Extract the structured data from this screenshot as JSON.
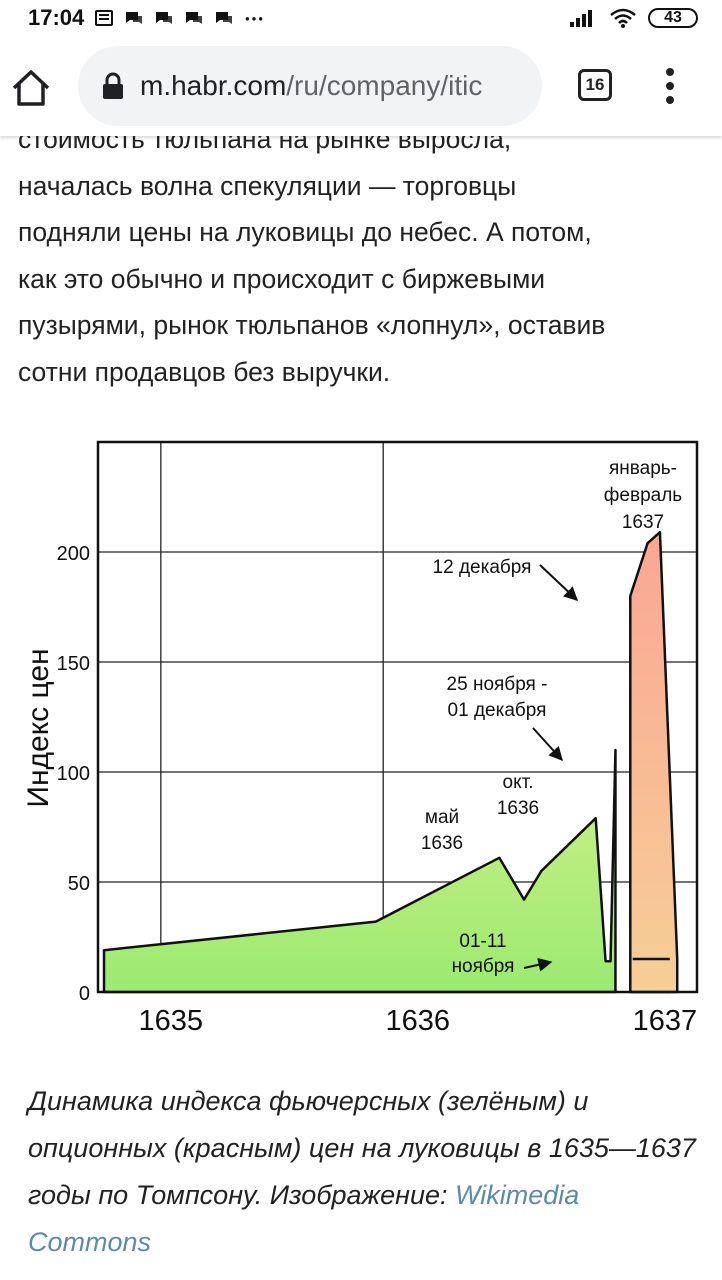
{
  "status_bar": {
    "time": "17:04",
    "battery": "43",
    "icons": [
      "notes-icon",
      "chat-icon",
      "chat-icon",
      "chat-icon",
      "chat-icon",
      "more-dots-icon",
      "signal-icon",
      "wifi-icon",
      "battery-icon"
    ]
  },
  "browser": {
    "url_host": "m.habr.com",
    "url_path": "/ru/company/itic",
    "tab_count": "16"
  },
  "article": {
    "lines": [
      "стоимость тюльпана на рынке выросла,",
      "началась волна спекуляции — торговцы",
      "подняли цены на луковицы до небес. А потом,",
      "как это обычно и происходит с биржевыми",
      "пузырями, рынок тюльпанов «лопнул», оставив",
      "сотни продавцов без выручки."
    ]
  },
  "chart_data": {
    "type": "area",
    "ylabel": "Индекс цен",
    "xlabel": "",
    "xlim": [
      1634.73,
      1637.13
    ],
    "ylim": [
      0,
      250
    ],
    "y_ticks": [
      0,
      50,
      100,
      150,
      200
    ],
    "x_ticks": [
      1635,
      1636,
      1637
    ],
    "x_tick_labels": [
      "1635",
      "1636",
      "1637"
    ],
    "grid": true,
    "colors": {
      "futures_fill_top": "#d0f088",
      "futures_fill_bottom": "#9bea70",
      "options_fill_top": "#fba695",
      "options_fill_bottom": "#f6cf95"
    },
    "series": [
      {
        "x": [
          1634.73,
          1635.83,
          1636.33,
          1636.43,
          1636.5,
          1636.72,
          1636.76,
          1636.78,
          1636.8
        ],
        "values": [
          19,
          32,
          61,
          42,
          55,
          79,
          14,
          14,
          110
        ]
      },
      {
        "x": [
          1636.87,
          1637.02
        ],
        "values": [
          15,
          15
        ]
      },
      {
        "x": [
          1636.86,
          1636.93,
          1636.98,
          1637.05
        ],
        "values": [
          180,
          204,
          209,
          15
        ]
      }
    ],
    "annotations": [
      {
        "lines": [
          "январь-",
          "февраль",
          "1637"
        ]
      },
      {
        "lines": [
          "12 декабря"
        ]
      },
      {
        "lines": [
          "25 ноября -",
          "01 декабря"
        ]
      },
      {
        "lines": [
          "окт.",
          "1636"
        ]
      },
      {
        "lines": [
          "май",
          "1636"
        ]
      },
      {
        "lines": [
          "01-11",
          "ноября"
        ]
      }
    ]
  },
  "caption": {
    "text": "Динамика индекса фьючерсных (зелёным) и опционных (красным) цен на луковицы в 1635—1637 годы по Томпсону. Изображение: ",
    "link": "Wikimedia Commons"
  }
}
